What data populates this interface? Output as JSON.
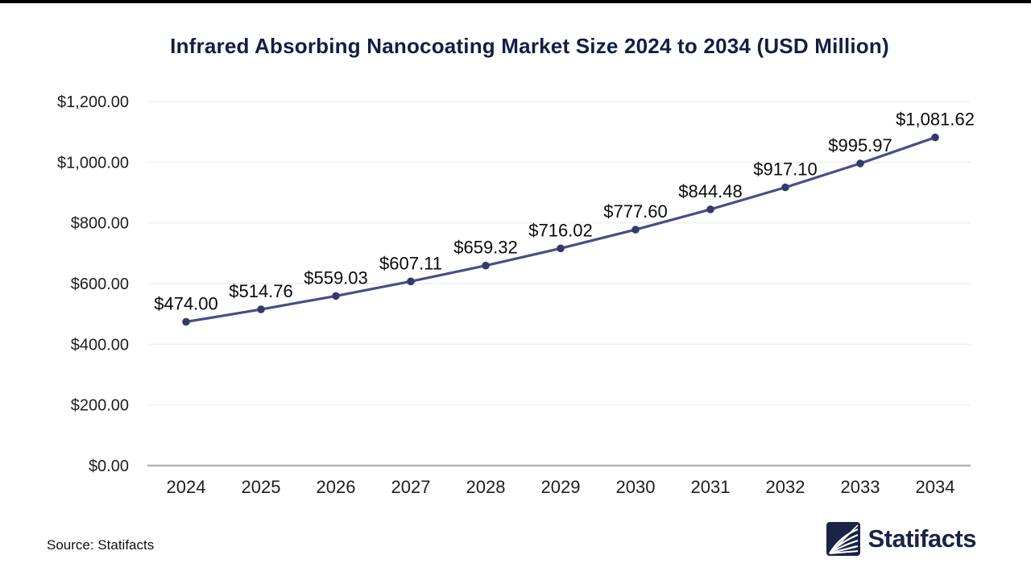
{
  "page": {
    "title": "Infrared Absorbing Nanocoating Market Size 2024 to 2034 (USD Million)",
    "source_label": "Source: Statifacts"
  },
  "branding": {
    "logo_text": "Statifacts",
    "logo_icon": "statifacts-waves-icon"
  },
  "colors": {
    "title": "#151d44",
    "line": "#484e86",
    "marker": "#333a6b",
    "grid": "#ececec",
    "axis_line": "#b3b3b3",
    "tick_text": "#1d1d1d",
    "data_label_text": "#0a0a0a",
    "brand_navy": "#1b2347",
    "top_bar": "#000000"
  },
  "chart_data": {
    "type": "line",
    "title": "Infrared Absorbing Nanocoating Market Size 2024 to 2034 (USD Million)",
    "categories": [
      "2024",
      "2025",
      "2026",
      "2027",
      "2028",
      "2029",
      "2030",
      "2031",
      "2032",
      "2033",
      "2034"
    ],
    "values": [
      474.0,
      514.76,
      559.03,
      607.11,
      659.32,
      716.02,
      777.6,
      844.48,
      917.1,
      995.97,
      1081.62
    ],
    "value_labels": [
      "$474.00",
      "$514.76",
      "$559.03",
      "$607.11",
      "$659.32",
      "$716.02",
      "$777.60",
      "$844.48",
      "$917.10",
      "$995.97",
      "$1,081.62"
    ],
    "y_ticks": [
      0,
      200,
      400,
      600,
      800,
      1000,
      1200
    ],
    "y_tick_labels": [
      "$0.00",
      "$200.00",
      "$400.00",
      "$600.00",
      "$800.00",
      "$1,000.00",
      "$1,200.00"
    ],
    "ylim": [
      0,
      1200
    ],
    "xlabel": "",
    "ylabel": "",
    "grid": true,
    "legend": false
  }
}
